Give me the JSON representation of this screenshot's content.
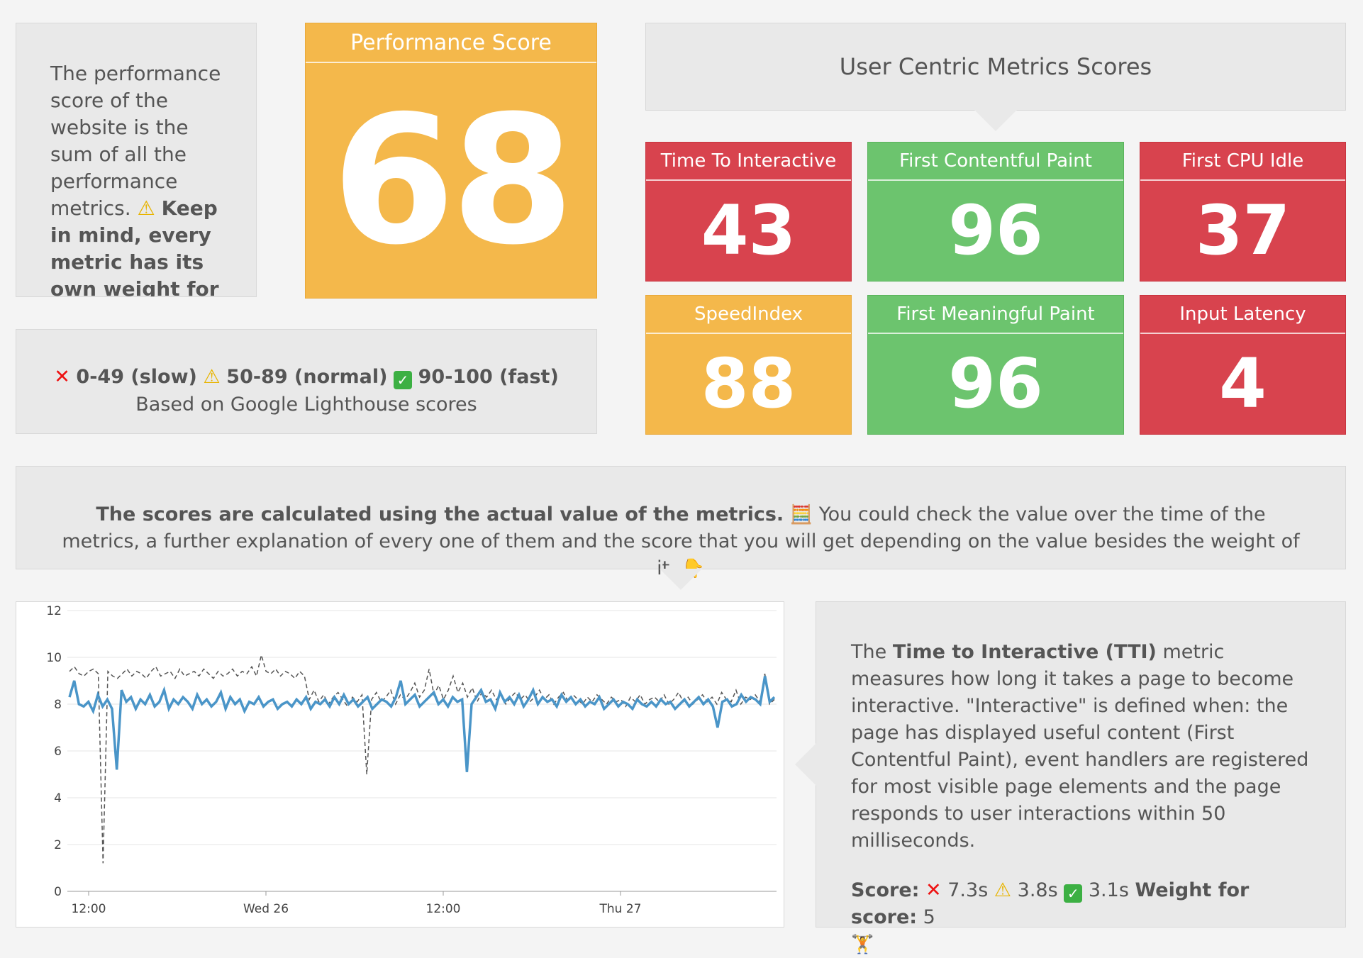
{
  "description": {
    "text_prefix": "The performance score of the website is the sum of all the performance metrics. ",
    "warn_icon": "⚠",
    "bold_text": "Keep in mind, every metric has its own weight for"
  },
  "performance": {
    "title": "Performance Score",
    "value": "68",
    "color": "#f4b84b"
  },
  "legend": {
    "slow": "0-49 (slow)",
    "normal": "50-89 (normal)",
    "fast": "90-100 (fast)",
    "source": "Based on Google Lighthouse scores"
  },
  "user_centric": {
    "title": "User Centric Metrics Scores",
    "metrics": [
      {
        "label": "Time To Interactive",
        "value": "43",
        "status": "red"
      },
      {
        "label": "First Contentful Paint",
        "value": "96",
        "status": "green"
      },
      {
        "label": "First CPU Idle",
        "value": "37",
        "status": "red"
      },
      {
        "label": "SpeedIndex",
        "value": "88",
        "status": "orange"
      },
      {
        "label": "First Meaningful Paint",
        "value": "96",
        "status": "green"
      },
      {
        "label": "Input Latency",
        "value": "4",
        "status": "red"
      }
    ]
  },
  "explanation": {
    "bold": "The scores are calculated using the actual value of the metrics.",
    "icon_1": "🧮",
    "text": "You could check the value over the time of the metrics, a further explanation of every one of them and the score that you will get depending on the value besides the weight of it.",
    "icon_2": "👇"
  },
  "tti": {
    "prefix": "The ",
    "metric_name": "Time to Interactive (TTI)",
    "body": " metric measures how long it takes a page to become interactive. \"Interactive\" is defined when: the page has displayed useful content (First Contentful Paint), event handlers are registered for most visible page elements and the page responds to user interactions within 50 milliseconds.",
    "score_label": "Score:",
    "slow_value": "7.3s",
    "normal_value": "3.8s",
    "fast_value": "3.1s",
    "weight_label": "Weight for score:",
    "weight_value": "5",
    "weight_icon": "🏋"
  },
  "chart_data": {
    "type": "line",
    "x_ticks": [
      "12:00",
      "Wed 26",
      "12:00",
      "Thu 27"
    ],
    "y_ticks": [
      "0",
      "2",
      "4",
      "6",
      "8",
      "10",
      "12"
    ],
    "ylim": [
      0,
      12
    ],
    "grid": true,
    "series": [
      {
        "style": "solid",
        "color": "#4a95c8",
        "values": [
          8.3,
          9.0,
          8.0,
          7.9,
          8.1,
          7.7,
          8.4,
          7.9,
          8.2,
          7.8,
          5.2,
          8.6,
          8.1,
          8.3,
          7.8,
          8.2,
          8.0,
          8.4,
          7.9,
          8.1,
          8.6,
          7.8,
          8.2,
          8.0,
          8.3,
          8.1,
          7.8,
          8.4,
          8.0,
          8.2,
          7.9,
          8.1,
          8.5,
          7.8,
          8.3,
          8.0,
          8.2,
          7.7,
          8.1,
          8.0,
          8.3,
          7.9,
          8.1,
          8.2,
          7.8,
          8.0,
          8.1,
          7.9,
          8.2,
          8.0,
          8.3,
          7.8,
          8.1,
          8.0,
          8.2,
          7.9,
          8.3,
          8.0,
          8.4,
          8.0,
          8.2,
          7.9,
          8.1,
          8.3,
          7.8,
          8.0,
          8.2,
          8.1,
          7.9,
          8.3,
          9.0,
          8.0,
          8.2,
          8.4,
          7.9,
          8.1,
          8.3,
          8.5,
          8.0,
          8.2,
          7.9,
          8.3,
          8.1,
          8.2,
          5.1,
          8.0,
          8.3,
          8.6,
          8.1,
          8.2,
          7.8,
          8.5,
          8.1,
          8.3,
          8.0,
          8.4,
          7.9,
          8.2,
          8.6,
          8.0,
          8.3,
          8.1,
          8.2,
          7.9,
          8.4,
          8.1,
          8.3,
          8.0,
          8.2,
          7.9,
          8.1,
          8.0,
          8.3,
          7.8,
          8.0,
          8.2,
          7.9,
          8.1,
          8.0,
          7.8,
          8.2,
          8.0,
          7.9,
          8.1,
          7.9,
          8.2,
          8.0,
          8.1,
          7.8,
          8.0,
          8.2,
          7.9,
          8.1,
          8.3,
          8.0,
          8.2,
          7.9,
          7.0,
          8.1,
          8.2,
          7.9,
          8.0,
          8.4,
          8.1,
          8.3,
          8.2,
          8.0,
          9.2,
          8.1,
          8.3
        ]
      },
      {
        "style": "dashed",
        "color": "#555555",
        "values": [
          9.4,
          9.6,
          9.3,
          9.2,
          9.4,
          9.5,
          9.3,
          1.2,
          9.4,
          9.2,
          9.1,
          9.3,
          9.5,
          9.2,
          9.4,
          9.3,
          9.1,
          9.4,
          9.6,
          9.2,
          9.3,
          9.4,
          9.1,
          9.5,
          9.2,
          9.3,
          9.4,
          9.2,
          9.5,
          9.3,
          9.1,
          9.4,
          9.2,
          9.3,
          9.5,
          9.2,
          9.4,
          9.3,
          9.6,
          9.2,
          10.1,
          9.4,
          9.3,
          9.5,
          9.2,
          9.4,
          9.3,
          9.1,
          9.4,
          9.2,
          8.2,
          8.6,
          8.1,
          8.4,
          8.0,
          8.3,
          8.5,
          8.2,
          7.9,
          8.3,
          8.1,
          8.4,
          5.0,
          8.2,
          8.5,
          8.1,
          8.3,
          8.6,
          8.0,
          8.4,
          8.2,
          8.5,
          8.9,
          8.3,
          8.6,
          9.5,
          8.4,
          8.8,
          8.2,
          8.6,
          9.2,
          8.5,
          8.9,
          8.3,
          8.7,
          8.1,
          8.5,
          8.3,
          8.6,
          8.2,
          8.4,
          8.0,
          8.3,
          8.5,
          8.2,
          8.4,
          8.1,
          8.3,
          8.6,
          8.2,
          8.4,
          8.0,
          8.3,
          8.5,
          8.1,
          8.4,
          8.2,
          8.0,
          8.3,
          8.1,
          8.4,
          8.2,
          8.0,
          8.3,
          8.1,
          8.2,
          7.9,
          8.3,
          8.1,
          8.4,
          8.0,
          8.2,
          8.3,
          8.1,
          8.4,
          8.0,
          8.2,
          8.5,
          8.1,
          8.3,
          8.0,
          8.2,
          8.4,
          8.1,
          8.3,
          8.0,
          8.5,
          8.2,
          8.1,
          8.6,
          8.0,
          8.3,
          8.2,
          8.4,
          8.1,
          9.3,
          8.0,
          8.2
        ]
      }
    ]
  }
}
